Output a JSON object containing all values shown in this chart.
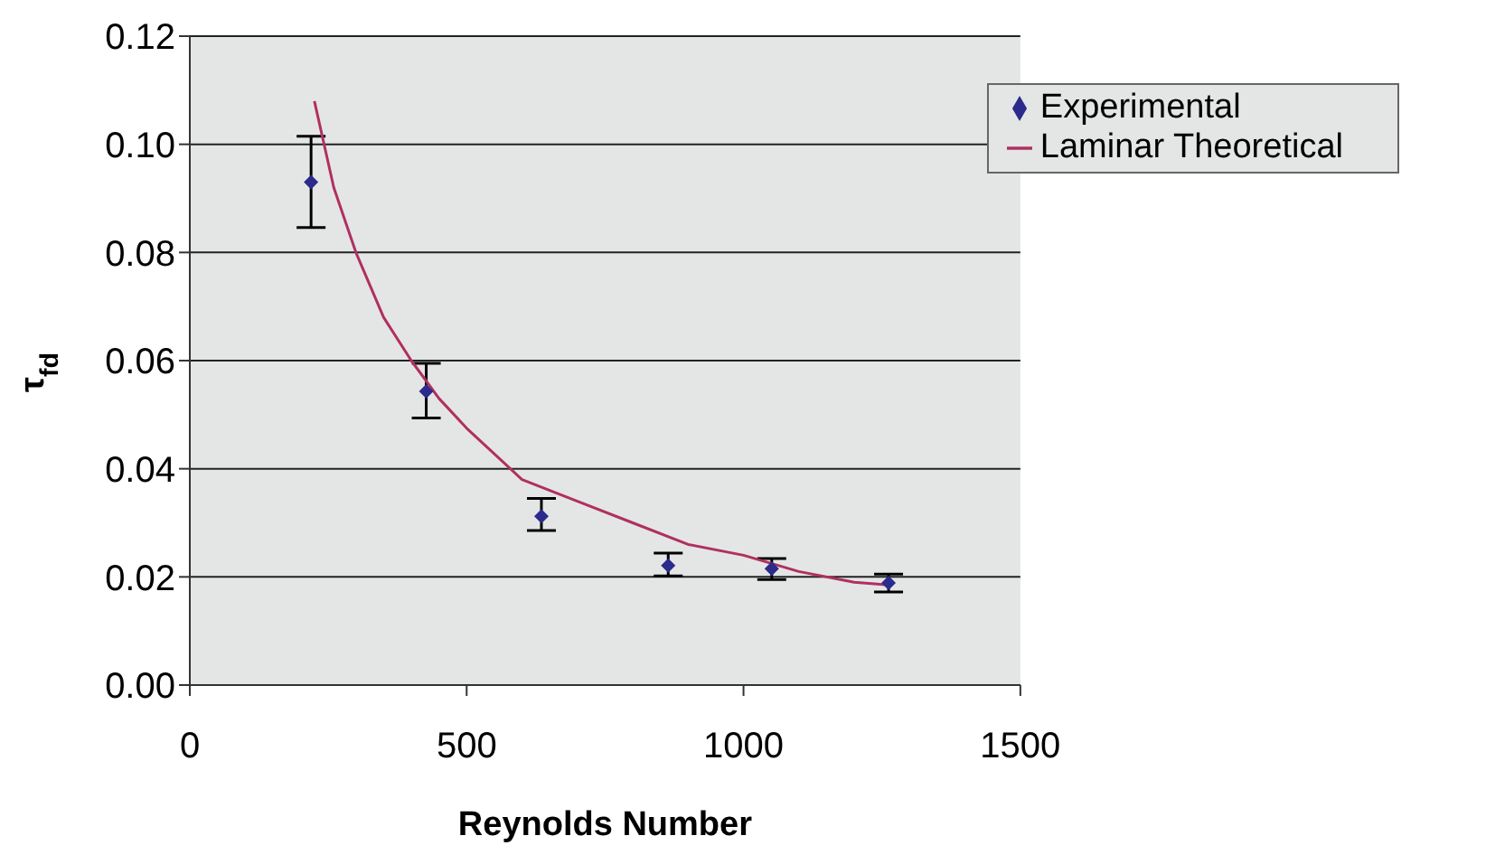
{
  "chart_data": {
    "type": "scatter",
    "xlabel": "Reynolds Number",
    "ylabel": "τ$_{fd}$",
    "xlim": [
      0,
      1500
    ],
    "xticks": [
      0,
      500,
      1000,
      1500
    ],
    "ylim": [
      0,
      0.12
    ],
    "yticks": [
      {
        "value": 0,
        "label": "0.00"
      },
      {
        "value": 0.02,
        "label": "0.02"
      },
      {
        "value": 0.04,
        "label": "0.04"
      },
      {
        "value": 0.06,
        "label": "0.06"
      },
      {
        "value": 0.08,
        "label": "0.08"
      },
      {
        "value": 0.1,
        "label": "0.10"
      },
      {
        "value": 0.12,
        "label": "0.12"
      }
    ],
    "grid": "y",
    "legend": "top right",
    "marker": "diamond",
    "series": [
      {
        "name": "Experimental",
        "color": "#2b2b8c",
        "x": [
          219,
          427,
          635,
          864,
          1051,
          1262
        ],
        "values": [
          0.093,
          0.0543,
          0.0312,
          0.0221,
          0.0215,
          0.0189
        ],
        "errors": [
          [
            0.0846,
            0.1015
          ],
          [
            0.0494,
            0.0595
          ],
          [
            0.0286,
            0.0345
          ],
          [
            0.0202,
            0.0244
          ],
          [
            0.0195,
            0.0234
          ],
          [
            0.0172,
            0.0205
          ]
        ]
      },
      {
        "name": "Laminar Theoretical",
        "type": "line",
        "color": "#b03060",
        "marker": "none",
        "x": [
          225,
          260,
          300,
          350,
          400,
          450,
          500,
          600,
          700,
          800,
          900,
          1000,
          1100,
          1200,
          1262
        ],
        "values": [
          0.108,
          0.092,
          0.08,
          0.068,
          0.06,
          0.053,
          0.0475,
          0.038,
          0.034,
          0.03,
          0.026,
          0.024,
          0.021,
          0.019,
          0.0185
        ]
      }
    ]
  }
}
